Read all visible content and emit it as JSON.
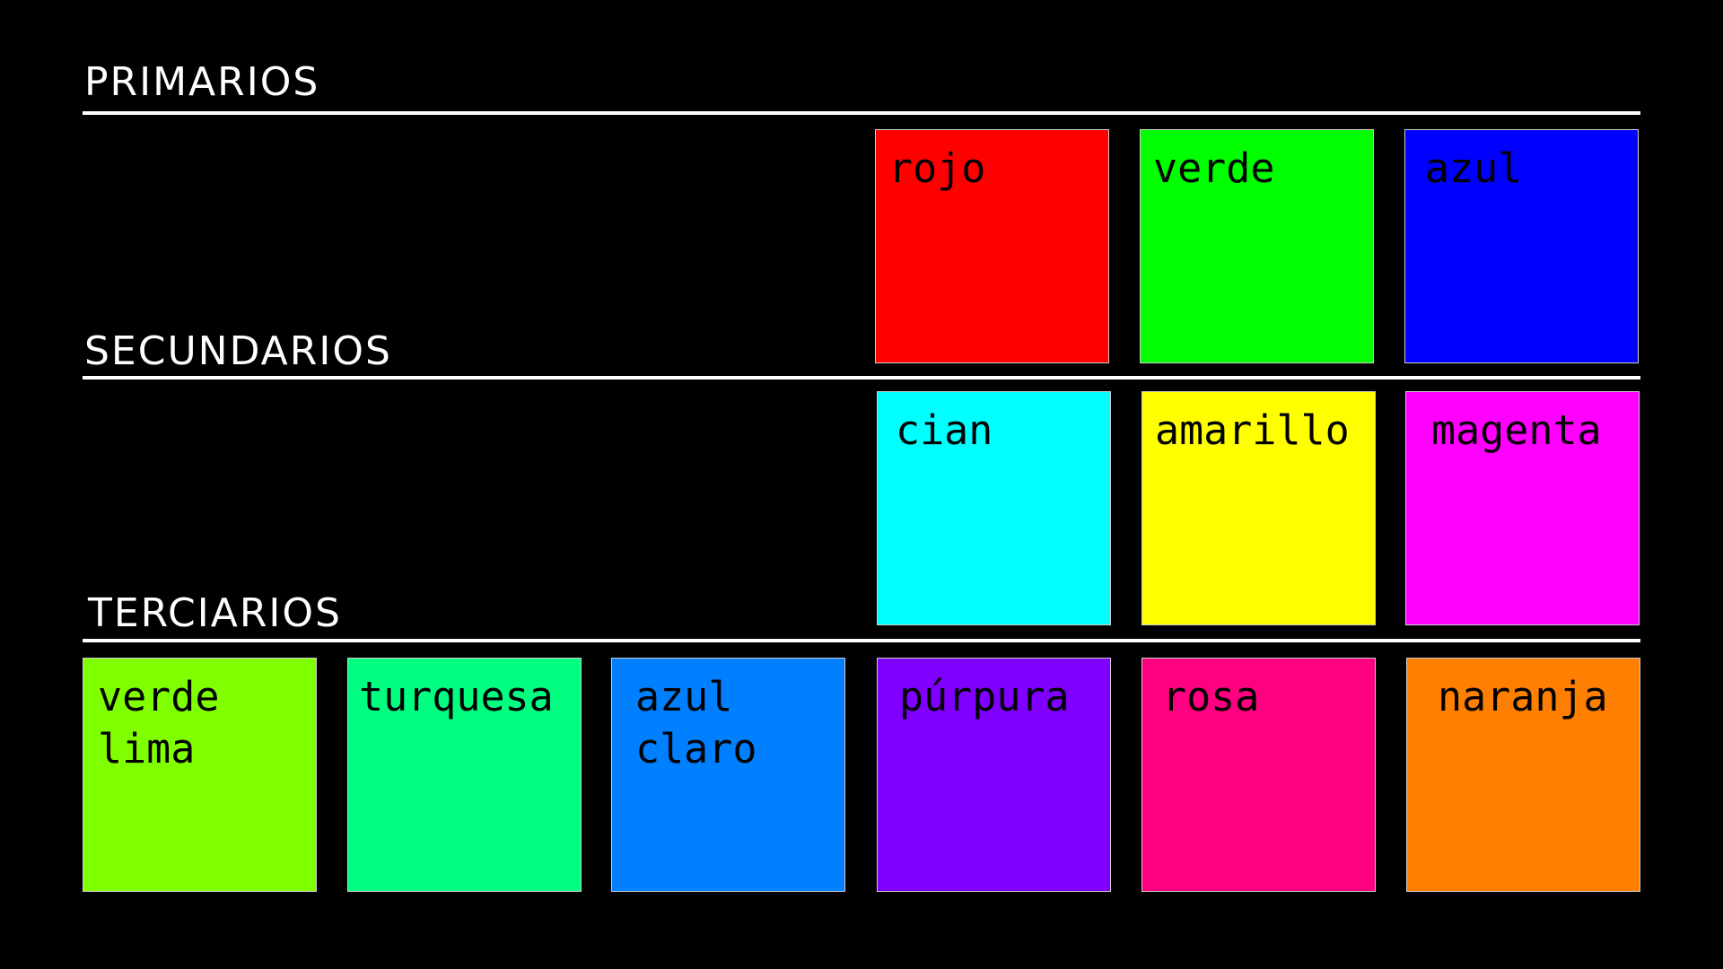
{
  "sections": {
    "primary": {
      "title": "PRIMARIOS",
      "swatches": [
        {
          "label": "rojo",
          "color": "#ff0000"
        },
        {
          "label": "verde",
          "color": "#00ff00"
        },
        {
          "label": "azul",
          "color": "#0000ff"
        }
      ]
    },
    "secondary": {
      "title": "SECUNDARIOS",
      "swatches": [
        {
          "label": "cian",
          "color": "#00ffff"
        },
        {
          "label": "amarillo",
          "color": "#ffff00"
        },
        {
          "label": "magenta",
          "color": "#ff00ff"
        }
      ]
    },
    "tertiary": {
      "title": "TERCIARIOS",
      "swatches": [
        {
          "label": "verde\nlima",
          "color": "#80ff00"
        },
        {
          "label": "turquesa",
          "color": "#00ff80"
        },
        {
          "label": "azul\nclaro",
          "color": "#0080ff"
        },
        {
          "label": "púrpura",
          "color": "#8000ff"
        },
        {
          "label": "rosa",
          "color": "#ff0080"
        },
        {
          "label": "naranja",
          "color": "#ff8000"
        }
      ]
    }
  }
}
